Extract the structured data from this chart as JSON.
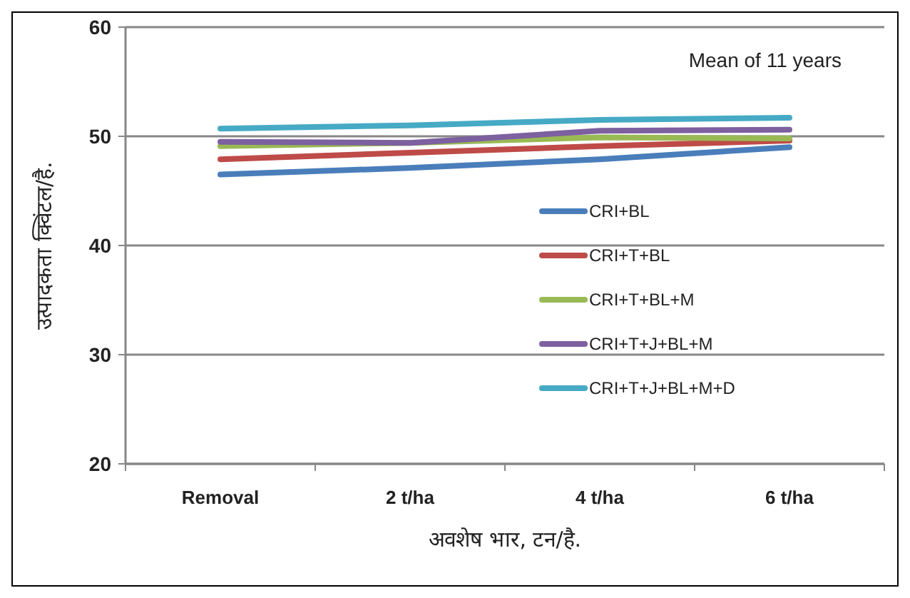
{
  "chart_data": {
    "type": "line",
    "xlabel": "अवशेष भार, टन/है.",
    "ylabel": "उत्पादकता क्विंटल/है.",
    "annotations": [
      "Mean of 11 years"
    ],
    "categories": [
      "Removal",
      "2 t/ha",
      "4 t/ha",
      "6 t/ha"
    ],
    "series": [
      {
        "name": "CRI+BL",
        "color": "#4a7ebb",
        "values": [
          46.5,
          47.1,
          47.9,
          49.0
        ]
      },
      {
        "name": "CRI+T+BL",
        "color": "#be4b48",
        "values": [
          47.9,
          48.5,
          49.1,
          49.6
        ]
      },
      {
        "name": "CRI+T+BL+M",
        "color": "#98b954",
        "values": [
          49.1,
          49.4,
          49.9,
          49.8
        ]
      },
      {
        "name": "CRI+T+J+BL+M",
        "color": "#7d60a0",
        "values": [
          49.5,
          49.4,
          50.5,
          50.6
        ]
      },
      {
        "name": "CRI+T+J+BL+M+D",
        "color": "#46aac5",
        "values": [
          50.7,
          51.0,
          51.5,
          51.7
        ]
      }
    ],
    "ylim": [
      20,
      60
    ],
    "yticks": [
      20,
      30,
      40,
      50,
      60
    ],
    "grid": "y",
    "legend": "right",
    "marker": "none",
    "line_style": "solid"
  }
}
